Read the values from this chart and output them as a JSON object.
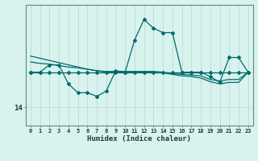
{
  "xlabel": "Humidex (Indice chaleur)",
  "bg_color": "#d8f2ee",
  "line_color": "#006b6b",
  "grid_color": "#b8d8d4",
  "spine_color": "#5a8a84",
  "ylim": [
    11.5,
    28.0
  ],
  "xlim": [
    -0.5,
    23.5
  ],
  "y_tick_val": 14,
  "x_ticks": [
    0,
    1,
    2,
    3,
    4,
    5,
    6,
    7,
    8,
    9,
    10,
    11,
    12,
    13,
    14,
    15,
    16,
    17,
    18,
    19,
    20,
    21,
    22,
    23
  ],
  "x_ticklabels": [
    "0",
    "1",
    "2",
    "3",
    "4",
    "5",
    "6",
    "7",
    "8",
    "9",
    "10",
    "11",
    "12",
    "13",
    "14",
    "15",
    "16",
    "17",
    "18",
    "19",
    "20",
    "21",
    "22",
    "23"
  ],
  "zigzag_y": [
    18.8,
    18.8,
    19.8,
    19.8,
    17.2,
    16.0,
    16.0,
    15.5,
    16.2,
    19.0,
    18.8,
    23.2,
    26.0,
    24.8,
    24.2,
    24.2,
    18.8,
    18.8,
    18.8,
    18.2,
    17.4,
    20.8,
    20.8,
    18.8
  ],
  "flat_y": [
    18.8,
    18.8,
    18.8,
    18.8,
    18.8,
    18.8,
    18.8,
    18.8,
    18.8,
    18.8,
    18.8,
    18.8,
    18.8,
    18.8,
    18.8,
    18.8,
    18.8,
    18.8,
    18.8,
    18.8,
    18.8,
    18.8,
    18.8,
    18.8
  ],
  "trend1_y": [
    20.2,
    20.0,
    19.9,
    19.7,
    19.5,
    19.4,
    19.2,
    19.0,
    18.9,
    18.9,
    18.9,
    18.9,
    18.9,
    18.9,
    18.8,
    18.6,
    18.5,
    18.4,
    18.3,
    17.8,
    17.6,
    17.8,
    17.8,
    18.8
  ],
  "trend2_y": [
    21.0,
    20.7,
    20.4,
    20.1,
    19.8,
    19.5,
    19.2,
    19.0,
    18.8,
    18.8,
    18.8,
    18.8,
    18.8,
    18.8,
    18.7,
    18.5,
    18.3,
    18.2,
    18.0,
    17.5,
    17.2,
    17.4,
    17.4,
    18.8
  ]
}
